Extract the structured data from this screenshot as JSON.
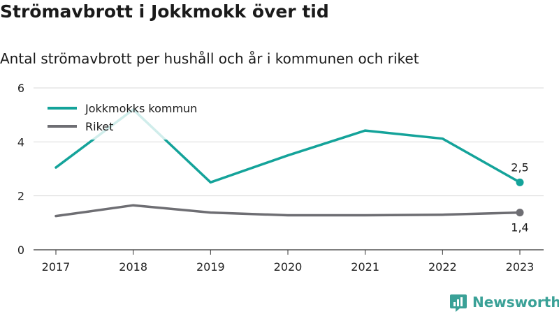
{
  "header": {
    "title": "Strömavbrott i Jokkmokk över tid",
    "subtitle": "Antal strömavbrott per hushåll och år i kommunen och riket"
  },
  "brand": {
    "name": "Newsworthy",
    "color": "#3aa197",
    "icon": "newsworthy-logo-icon"
  },
  "chart_data": {
    "type": "line",
    "x": [
      "2017",
      "2018",
      "2019",
      "2020",
      "2021",
      "2022",
      "2023"
    ],
    "series": [
      {
        "name": "Jokkmokks kommun",
        "color": "#14a39a",
        "values": [
          3.05,
          5.2,
          2.5,
          3.5,
          4.42,
          4.12,
          2.5
        ],
        "end_label": "2,5"
      },
      {
        "name": "Riket",
        "color": "#6e6e73",
        "values": [
          1.25,
          1.65,
          1.38,
          1.28,
          1.28,
          1.3,
          1.38
        ],
        "end_label": "1,4"
      }
    ],
    "y_ticks": [
      "0",
      "2",
      "4",
      "6"
    ],
    "ylim": [
      0,
      6
    ],
    "grid": true,
    "legend_position": "top-left"
  }
}
